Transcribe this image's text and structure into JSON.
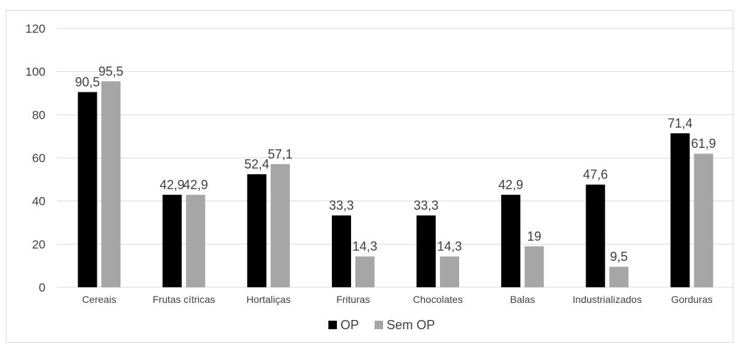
{
  "chart_data": {
    "type": "bar",
    "categories": [
      "Cereais",
      "Frutas cítricas",
      "Hortaliças",
      "Frituras",
      "Chocolates",
      "Balas",
      "Industrializados",
      "Gorduras"
    ],
    "series": [
      {
        "name": "OP",
        "values": [
          90.5,
          42.9,
          52.4,
          33.3,
          33.3,
          42.9,
          47.6,
          71.4
        ],
        "labels": [
          "90,5",
          "42,9",
          "52,4",
          "33,3",
          "33,3",
          "42,9",
          "47,6",
          "71,4"
        ],
        "color": "#000000"
      },
      {
        "name": "Sem OP",
        "values": [
          95.5,
          42.9,
          57.1,
          14.3,
          14.3,
          19,
          9.5,
          61.9
        ],
        "labels": [
          "95,5",
          "42,9",
          "57,1",
          "14,3",
          "14,3",
          "19",
          "9,5",
          "61,9"
        ],
        "color": "#a6a6a6"
      }
    ],
    "yticks": [
      "0",
      "20",
      "40",
      "60",
      "80",
      "100",
      "120"
    ],
    "ylim": [
      0,
      120
    ],
    "grid": true,
    "legend": "bottom",
    "title": "",
    "xlabel": "",
    "ylabel": ""
  }
}
